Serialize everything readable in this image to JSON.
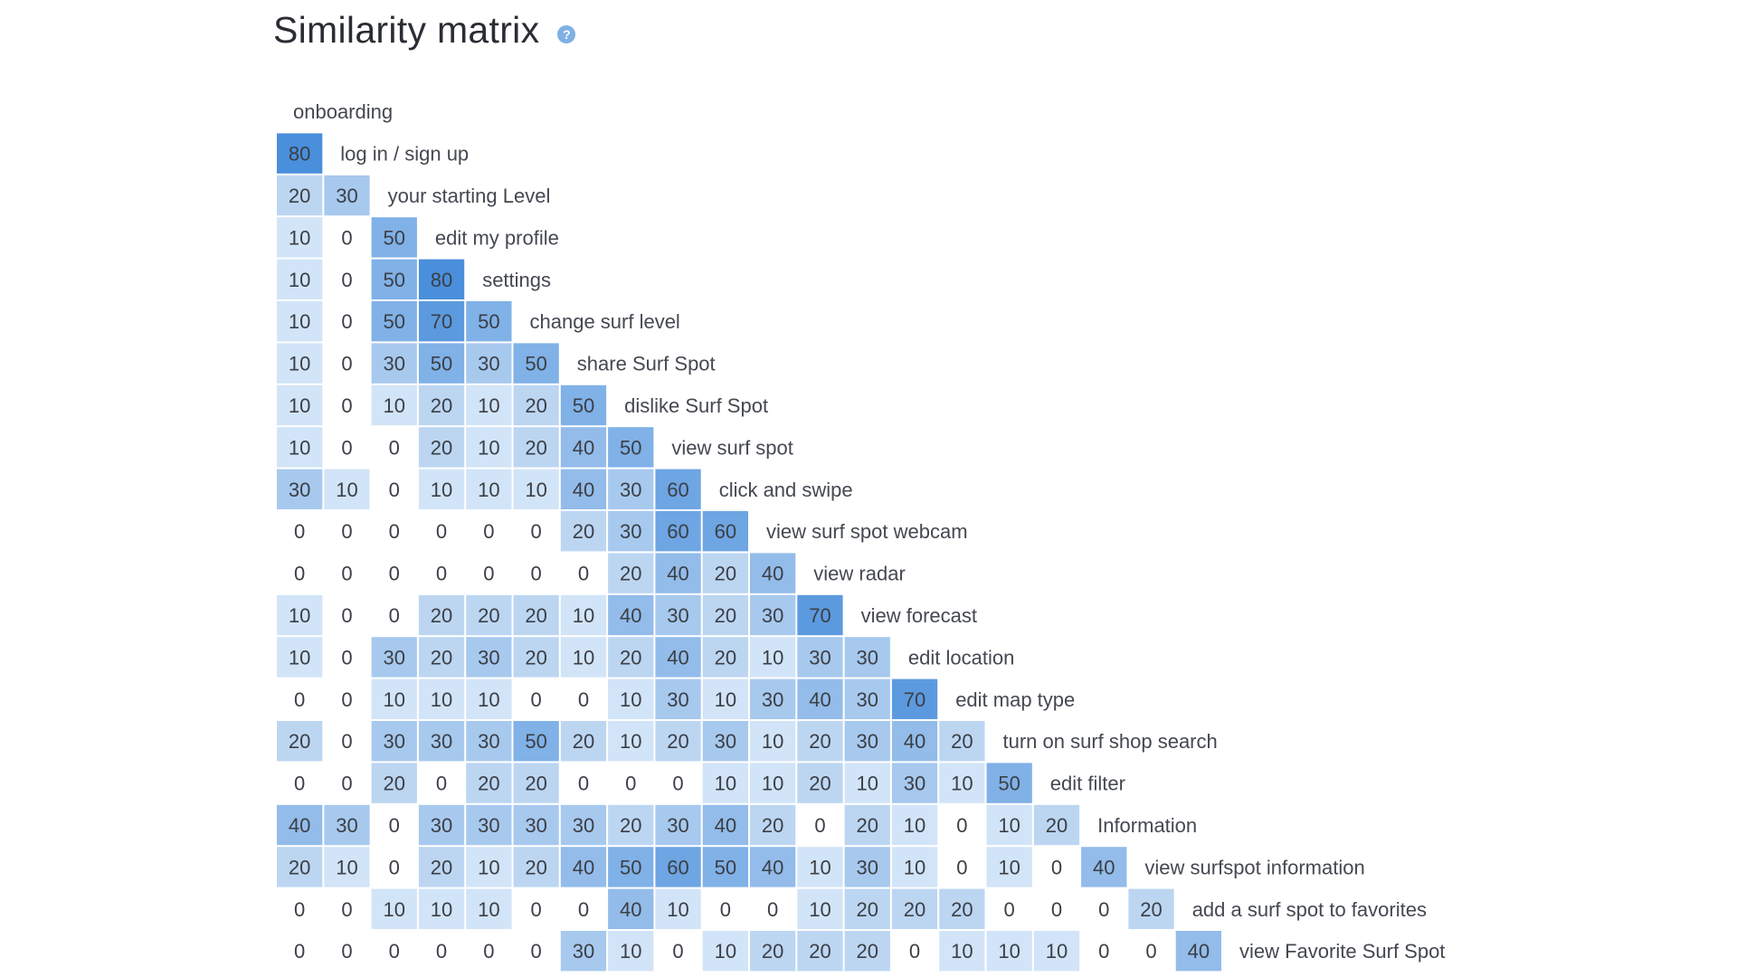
{
  "header": {
    "title": "Similarity matrix",
    "help_icon": "?"
  },
  "colors": {
    "cell_min": "#eef5fc",
    "cell_max": "#4a8fdc",
    "zero_cell": "#ffffff"
  },
  "chart_data": {
    "type": "heatmap",
    "title": "Similarity matrix",
    "layout": "lower-triangular",
    "labels": [
      "onboarding",
      "log in / sign up",
      "your starting Level",
      "edit my profile",
      "settings",
      "change surf level",
      "share Surf Spot",
      "dislike Surf Spot",
      "view surf spot",
      "click and swipe",
      "view surf spot webcam",
      "view radar",
      "view forecast",
      "edit location",
      "edit map type",
      "turn on surf shop search",
      "edit filter",
      "Information",
      "view surfspot information",
      "add a surf spot to favorites",
      "view Favorite Surf Spot"
    ],
    "rows": [
      [],
      [
        80
      ],
      [
        20,
        30
      ],
      [
        10,
        0,
        50
      ],
      [
        10,
        0,
        50,
        80
      ],
      [
        10,
        0,
        50,
        70,
        50
      ],
      [
        10,
        0,
        30,
        50,
        30,
        50
      ],
      [
        10,
        0,
        10,
        20,
        10,
        20,
        50
      ],
      [
        10,
        0,
        0,
        20,
        10,
        20,
        40,
        50
      ],
      [
        30,
        10,
        0,
        10,
        10,
        10,
        40,
        30,
        60
      ],
      [
        0,
        0,
        0,
        0,
        0,
        0,
        20,
        30,
        60,
        60
      ],
      [
        0,
        0,
        0,
        0,
        0,
        0,
        0,
        20,
        40,
        20,
        40
      ],
      [
        10,
        0,
        0,
        20,
        20,
        20,
        10,
        40,
        30,
        20,
        30,
        70
      ],
      [
        10,
        0,
        30,
        20,
        30,
        20,
        10,
        20,
        40,
        20,
        10,
        30,
        30
      ],
      [
        0,
        0,
        10,
        10,
        10,
        0,
        0,
        10,
        30,
        10,
        30,
        40,
        30,
        70
      ],
      [
        20,
        0,
        30,
        30,
        30,
        50,
        20,
        10,
        20,
        30,
        10,
        20,
        30,
        40,
        20
      ],
      [
        0,
        0,
        20,
        0,
        20,
        20,
        0,
        0,
        0,
        10,
        10,
        20,
        10,
        30,
        10,
        50
      ],
      [
        40,
        30,
        0,
        30,
        30,
        30,
        30,
        20,
        30,
        40,
        20,
        0,
        20,
        10,
        0,
        10,
        20
      ],
      [
        20,
        10,
        0,
        20,
        10,
        20,
        40,
        50,
        60,
        50,
        40,
        10,
        30,
        10,
        0,
        10,
        0,
        40
      ],
      [
        0,
        0,
        10,
        10,
        10,
        0,
        0,
        40,
        10,
        0,
        0,
        10,
        20,
        20,
        20,
        0,
        0,
        0,
        20
      ],
      [
        0,
        0,
        0,
        0,
        0,
        0,
        30,
        10,
        0,
        10,
        20,
        20,
        20,
        0,
        10,
        10,
        10,
        0,
        0,
        40
      ]
    ],
    "value_range": [
      0,
      80
    ]
  }
}
